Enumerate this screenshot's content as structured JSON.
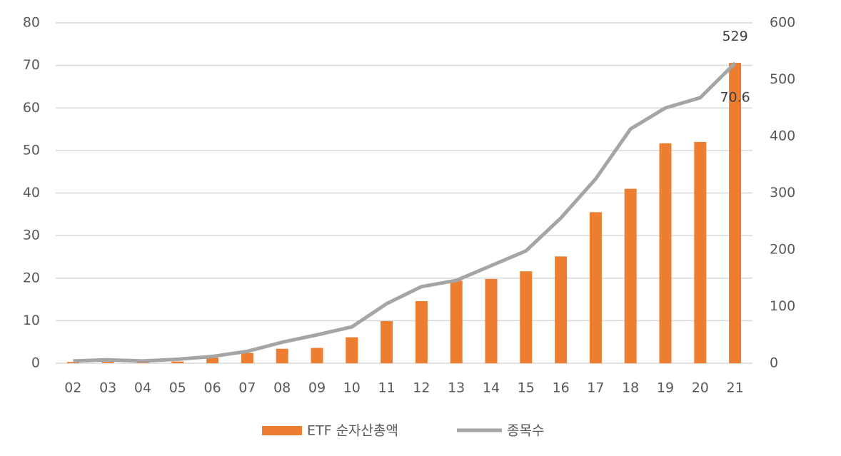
{
  "chart_data": {
    "type": "bar-line",
    "categories": [
      "02",
      "03",
      "04",
      "05",
      "06",
      "07",
      "08",
      "09",
      "10",
      "11",
      "12",
      "13",
      "14",
      "15",
      "16",
      "17",
      "18",
      "19",
      "20",
      "21"
    ],
    "series": [
      {
        "name": "ETF 순자산총액",
        "type": "bar",
        "color": "#ed7d31",
        "values": [
          0.3,
          0.3,
          0.3,
          0.4,
          1.3,
          2.4,
          3.4,
          3.6,
          6.1,
          9.9,
          14.6,
          19.4,
          19.8,
          21.6,
          25.1,
          35.5,
          41.0,
          51.7,
          52.0,
          70.6
        ]
      },
      {
        "name": "종목수",
        "type": "line",
        "axis": "y2",
        "color": "#a5a5a5",
        "values": [
          4,
          6,
          4,
          7,
          12,
          21,
          37,
          50,
          64,
          105,
          135,
          146,
          172,
          198,
          256,
          325,
          413,
          450,
          468,
          529
        ]
      }
    ],
    "ylim": [
      0,
      80
    ],
    "yticks": [
      0,
      10,
      20,
      30,
      40,
      50,
      60,
      70,
      80
    ],
    "y2lim": [
      0,
      600
    ],
    "y2ticks": [
      0,
      100,
      200,
      300,
      400,
      500,
      600
    ],
    "grid": true,
    "legend": "bottom"
  }
}
